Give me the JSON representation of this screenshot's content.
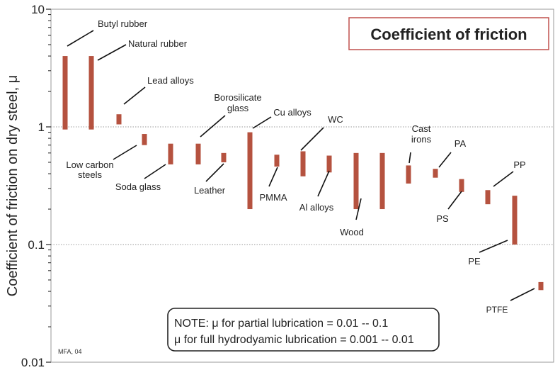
{
  "chart_data": {
    "type": "bar",
    "title": "Coefficient of friction",
    "ylabel": "Coefficient of friction on dry steel, μ",
    "xlabel": "",
    "yscale": "log",
    "ylim": [
      0.01,
      10
    ],
    "yticks": [
      {
        "value": 10,
        "label": "10"
      },
      {
        "value": 1,
        "label": "1"
      },
      {
        "value": 0.1,
        "label": "0.1"
      },
      {
        "value": 0.01,
        "label": "0.01"
      }
    ],
    "grid": "horizontal dotted at 1 and 0.1",
    "bar_color": "#b5523f",
    "ranges": [
      {
        "name": "Butyl rubber",
        "low": 0.95,
        "high": 4.0
      },
      {
        "name": "Natural rubber",
        "low": 0.95,
        "high": 4.0
      },
      {
        "name": "Lead alloys",
        "low": 1.05,
        "high": 1.28
      },
      {
        "name": "Low carbon steels",
        "low": 0.7,
        "high": 0.87
      },
      {
        "name": "Soda glass",
        "low": 0.48,
        "high": 0.72
      },
      {
        "name": "Borosilicate glass",
        "low": 0.48,
        "high": 0.72
      },
      {
        "name": "Leather",
        "low": 0.5,
        "high": 0.6
      },
      {
        "name": "Cu alloys",
        "low": 0.2,
        "high": 0.9
      },
      {
        "name": "PMMA",
        "low": 0.46,
        "high": 0.58
      },
      {
        "name": "WC",
        "low": 0.38,
        "high": 0.62
      },
      {
        "name": "Al alloys",
        "low": 0.41,
        "high": 0.57
      },
      {
        "name": "Wood",
        "low": 0.2,
        "high": 0.6
      },
      {
        "name": "Wood",
        "low": 0.2,
        "high": 0.6
      },
      {
        "name": "Cast irons",
        "low": 0.33,
        "high": 0.47
      },
      {
        "name": "PA",
        "low": 0.37,
        "high": 0.44
      },
      {
        "name": "PS",
        "low": 0.28,
        "high": 0.36
      },
      {
        "name": "PP",
        "low": 0.22,
        "high": 0.29
      },
      {
        "name": "PE",
        "low": 0.1,
        "high": 0.26
      },
      {
        "name": "PTFE",
        "low": 0.041,
        "high": 0.048
      }
    ],
    "labels": [
      {
        "text": "Butyl rubber"
      },
      {
        "text": "Natural rubber"
      },
      {
        "text": "Lead alloys"
      },
      {
        "text": "Low carbon"
      },
      {
        "text": "steels"
      },
      {
        "text": "Soda glass"
      },
      {
        "text": "Borosilicate"
      },
      {
        "text": "glass"
      },
      {
        "text": "Leather"
      },
      {
        "text": "Cu alloys"
      },
      {
        "text": "PMMA"
      },
      {
        "text": "WC"
      },
      {
        "text": "Al alloys"
      },
      {
        "text": "Wood"
      },
      {
        "text": "Cast"
      },
      {
        "text": "irons"
      },
      {
        "text": "PA"
      },
      {
        "text": "PS"
      },
      {
        "text": "PP"
      },
      {
        "text": "PE"
      },
      {
        "text": "PTFE"
      }
    ],
    "note": {
      "line1": "NOTE: μ for partial lubrication = 0.01 -- 0.1",
      "line2": "μ for full hydrodyamic lubrication = 0.001 -- 0.01"
    },
    "credit": "MFA, 04"
  }
}
